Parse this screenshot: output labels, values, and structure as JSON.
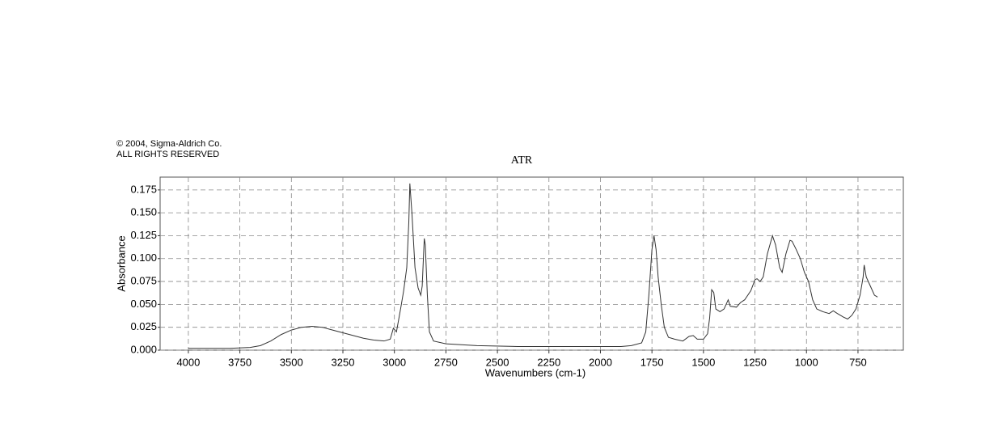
{
  "chart_data": {
    "type": "line",
    "copyright": "© 2004, Sigma-Aldrich Co.",
    "rights": "ALL RIGHTS RESERVED",
    "title": "ATR",
    "x_label": "Wavenumbers (cm-1)",
    "y_label": "Absorbance",
    "color": "#333333",
    "grid": true,
    "xlim": [
      4137,
      530
    ],
    "ylim": [
      0,
      0.189
    ],
    "xticks": [
      4000,
      3750,
      3500,
      3250,
      3000,
      2750,
      2500,
      2250,
      2000,
      1750,
      1500,
      1250,
      1000,
      750
    ],
    "yticks": [
      {
        "value": 0,
        "label": "0.000"
      },
      {
        "value": 0.025,
        "label": "0.025"
      },
      {
        "value": 0.05,
        "label": "0.050"
      },
      {
        "value": 0.075,
        "label": "0.075"
      },
      {
        "value": 0.1,
        "label": "0.100"
      },
      {
        "value": 0.125,
        "label": "0.125"
      },
      {
        "value": 0.15,
        "label": "0.150"
      },
      {
        "value": 0.175,
        "label": "0.175"
      }
    ],
    "x": [
      4000,
      3800,
      3700,
      3650,
      3600,
      3550,
      3500,
      3450,
      3400,
      3350,
      3300,
      3250,
      3200,
      3150,
      3100,
      3050,
      3020,
      3005,
      2990,
      2970,
      2955,
      2940,
      2930,
      2925,
      2915,
      2900,
      2885,
      2872,
      2865,
      2855,
      2850,
      2840,
      2830,
      2810,
      2750,
      2600,
      2400,
      2200,
      2000,
      1900,
      1850,
      1800,
      1780,
      1765,
      1750,
      1740,
      1730,
      1720,
      1705,
      1690,
      1670,
      1640,
      1600,
      1570,
      1550,
      1530,
      1500,
      1480,
      1470,
      1460,
      1450,
      1440,
      1420,
      1400,
      1380,
      1370,
      1340,
      1320,
      1300,
      1270,
      1250,
      1240,
      1225,
      1210,
      1190,
      1165,
      1150,
      1130,
      1118,
      1100,
      1080,
      1070,
      1050,
      1030,
      1010,
      990,
      970,
      950,
      920,
      890,
      870,
      850,
      820,
      800,
      780,
      760,
      740,
      725,
      720,
      710,
      690,
      670,
      655
    ],
    "values": [
      0.002,
      0.002,
      0.003,
      0.005,
      0.01,
      0.017,
      0.022,
      0.025,
      0.026,
      0.025,
      0.022,
      0.019,
      0.016,
      0.013,
      0.011,
      0.01,
      0.012,
      0.024,
      0.02,
      0.045,
      0.065,
      0.09,
      0.14,
      0.182,
      0.15,
      0.09,
      0.068,
      0.06,
      0.07,
      0.122,
      0.115,
      0.06,
      0.02,
      0.01,
      0.007,
      0.005,
      0.004,
      0.004,
      0.004,
      0.004,
      0.005,
      0.008,
      0.02,
      0.06,
      0.11,
      0.125,
      0.11,
      0.08,
      0.05,
      0.025,
      0.014,
      0.012,
      0.01,
      0.015,
      0.016,
      0.012,
      0.012,
      0.018,
      0.035,
      0.066,
      0.063,
      0.045,
      0.042,
      0.045,
      0.055,
      0.048,
      0.047,
      0.052,
      0.055,
      0.065,
      0.077,
      0.078,
      0.075,
      0.08,
      0.105,
      0.125,
      0.115,
      0.09,
      0.085,
      0.105,
      0.12,
      0.119,
      0.11,
      0.1,
      0.085,
      0.075,
      0.055,
      0.045,
      0.042,
      0.04,
      0.043,
      0.04,
      0.036,
      0.034,
      0.038,
      0.045,
      0.06,
      0.08,
      0.093,
      0.08,
      0.07,
      0.06,
      0.058
    ]
  }
}
